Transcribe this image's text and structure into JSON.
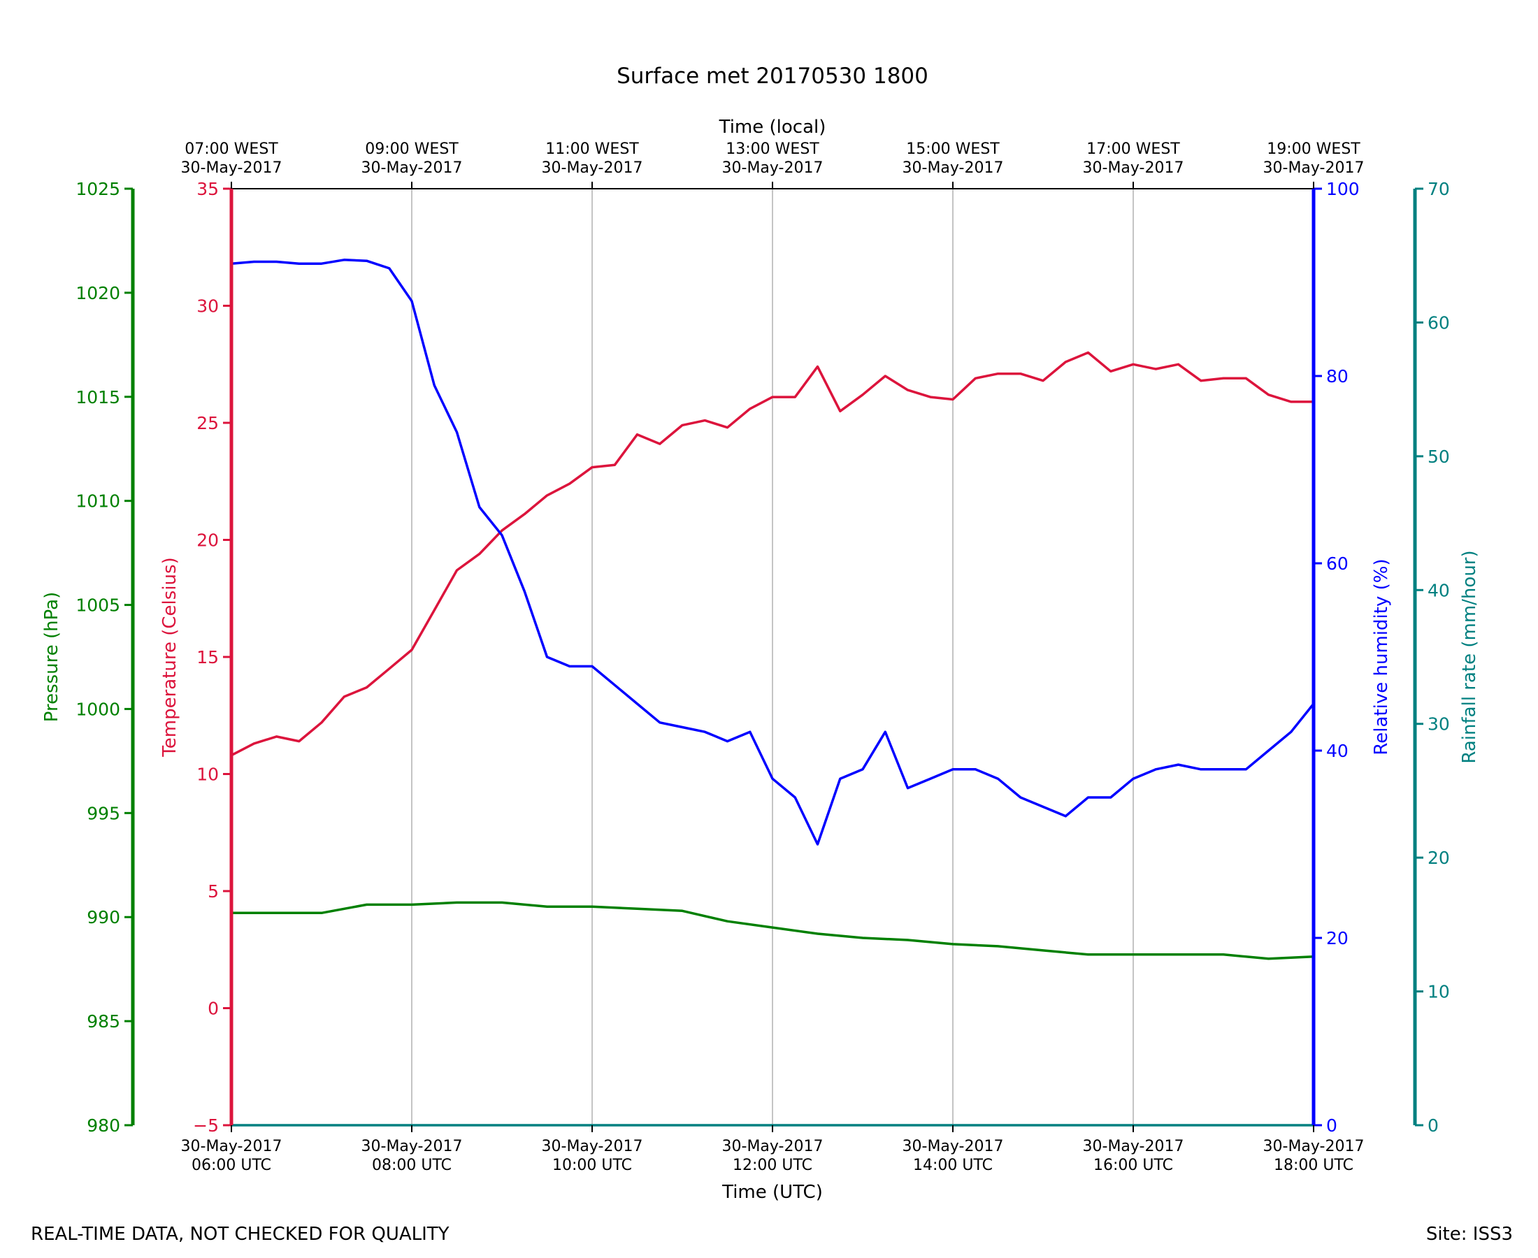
{
  "chart_data": {
    "type": "line",
    "title": "Surface met 20170530 1800",
    "x_utc": {
      "label": "Time (UTC)",
      "range_hours": [
        6,
        18
      ],
      "ticks": [
        {
          "date": "30-May-2017",
          "time": "06:00 UTC"
        },
        {
          "date": "30-May-2017",
          "time": "08:00 UTC"
        },
        {
          "date": "30-May-2017",
          "time": "10:00 UTC"
        },
        {
          "date": "30-May-2017",
          "time": "12:00 UTC"
        },
        {
          "date": "30-May-2017",
          "time": "14:00 UTC"
        },
        {
          "date": "30-May-2017",
          "time": "16:00 UTC"
        },
        {
          "date": "30-May-2017",
          "time": "18:00 UTC"
        }
      ]
    },
    "x_local": {
      "label": "Time (local)",
      "ticks": [
        {
          "time": "07:00 WEST",
          "date": "30-May-2017"
        },
        {
          "time": "09:00 WEST",
          "date": "30-May-2017"
        },
        {
          "time": "11:00 WEST",
          "date": "30-May-2017"
        },
        {
          "time": "13:00 WEST",
          "date": "30-May-2017"
        },
        {
          "time": "15:00 WEST",
          "date": "30-May-2017"
        },
        {
          "time": "17:00 WEST",
          "date": "30-May-2017"
        },
        {
          "time": "19:00 WEST",
          "date": "30-May-2017"
        }
      ]
    },
    "axes": {
      "pressure": {
        "label": "Pressure (hPa)",
        "range": [
          980,
          1025
        ],
        "ticks": [
          "980",
          "985",
          "990",
          "995",
          "1000",
          "1005",
          "1010",
          "1015",
          "1020",
          "1025"
        ],
        "color": "#008000"
      },
      "temperature": {
        "label": "Temperature (Celsius)",
        "range": [
          -5,
          35
        ],
        "ticks": [
          "−5",
          "0",
          "5",
          "10",
          "15",
          "20",
          "25",
          "30",
          "35"
        ],
        "color": "#dc143c"
      },
      "humidity": {
        "label": "Relative humidity (%)",
        "range": [
          0,
          100
        ],
        "ticks": [
          "0",
          "20",
          "40",
          "60",
          "80",
          "100"
        ],
        "color": "#0000ff"
      },
      "rainfall": {
        "label": "Rainfall rate (mm/hour)",
        "range": [
          0,
          70
        ],
        "ticks": [
          "0",
          "10",
          "20",
          "30",
          "40",
          "50",
          "60",
          "70"
        ],
        "color": "#008080"
      }
    },
    "series": [
      {
        "name": "Temperature",
        "axis": "temperature",
        "color": "#dc143c",
        "x_hours": [
          6.0,
          6.25,
          6.5,
          6.75,
          7.0,
          7.25,
          7.5,
          7.75,
          8.0,
          8.25,
          8.5,
          8.75,
          9.0,
          9.25,
          9.5,
          9.75,
          10.0,
          10.25,
          10.5,
          10.75,
          11.0,
          11.25,
          11.5,
          11.75,
          12.0,
          12.25,
          12.5,
          12.75,
          13.0,
          13.25,
          13.5,
          13.75,
          14.0,
          14.25,
          14.5,
          14.75,
          15.0,
          15.25,
          15.5,
          15.75,
          16.0,
          16.25,
          16.5,
          16.75,
          17.0,
          17.25,
          17.5,
          17.75,
          18.0
        ],
        "values": [
          10.8,
          11.3,
          11.6,
          11.4,
          12.2,
          13.3,
          13.7,
          14.5,
          15.3,
          17.0,
          18.7,
          19.4,
          20.4,
          21.1,
          21.9,
          22.4,
          23.1,
          23.2,
          24.5,
          24.1,
          24.9,
          25.1,
          24.8,
          25.6,
          26.1,
          26.1,
          27.4,
          25.5,
          26.2,
          27.0,
          26.4,
          26.1,
          26.0,
          26.9,
          27.1,
          27.1,
          26.8,
          27.6,
          28.0,
          27.2,
          27.5,
          27.3,
          27.5,
          26.8,
          26.9,
          26.9,
          26.2,
          25.9,
          25.9
        ]
      },
      {
        "name": "Relative humidity",
        "axis": "humidity",
        "color": "#0000ff",
        "x_hours": [
          6.0,
          6.25,
          6.5,
          6.75,
          7.0,
          7.25,
          7.5,
          7.75,
          8.0,
          8.25,
          8.5,
          8.75,
          9.0,
          9.25,
          9.5,
          9.75,
          10.0,
          10.25,
          10.5,
          10.75,
          11.0,
          11.25,
          11.5,
          11.75,
          12.0,
          12.25,
          12.5,
          12.75,
          13.0,
          13.25,
          13.5,
          13.75,
          14.0,
          14.25,
          14.5,
          14.75,
          15.0,
          15.25,
          15.5,
          15.75,
          16.0,
          16.25,
          16.5,
          16.75,
          17.0,
          17.25,
          17.5,
          17.75,
          18.0
        ],
        "values": [
          92.0,
          92.2,
          92.2,
          92.0,
          92.0,
          92.4,
          92.3,
          91.5,
          88,
          79,
          74,
          66,
          63,
          57,
          50,
          49,
          49,
          47,
          45,
          43,
          42.5,
          42,
          41,
          42,
          37,
          35,
          30,
          37,
          38,
          42,
          36,
          37,
          38,
          38,
          37,
          35,
          34,
          33,
          35,
          35,
          37,
          38,
          38.5,
          38,
          38,
          38,
          40,
          42,
          45
        ]
      },
      {
        "name": "Pressure",
        "axis": "pressure",
        "color": "#008000",
        "x_hours": [
          6.0,
          6.5,
          7.0,
          7.5,
          8.0,
          8.5,
          9.0,
          9.5,
          10.0,
          10.5,
          11.0,
          11.5,
          12.0,
          12.5,
          13.0,
          13.5,
          14.0,
          14.5,
          15.0,
          15.5,
          16.0,
          16.5,
          17.0,
          17.5,
          18.0
        ],
        "values": [
          990.2,
          990.2,
          990.2,
          990.6,
          990.6,
          990.7,
          990.7,
          990.5,
          990.5,
          990.4,
          990.3,
          989.8,
          989.5,
          989.2,
          989.0,
          988.9,
          988.7,
          988.6,
          988.4,
          988.2,
          988.2,
          988.2,
          988.2,
          988.0,
          988.1
        ]
      },
      {
        "name": "Rainfall rate",
        "axis": "rainfall",
        "color": "#008080",
        "x_hours": [
          6.0,
          18.0
        ],
        "values": [
          0.0,
          0.0
        ]
      }
    ]
  },
  "footer": {
    "disclaimer": "REAL-TIME DATA, NOT CHECKED FOR QUALITY",
    "site": "Site: ISS3"
  }
}
